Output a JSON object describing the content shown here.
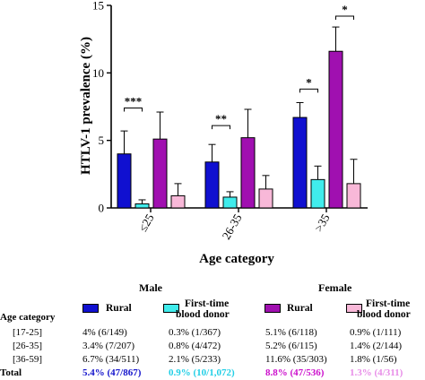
{
  "colors": {
    "male_rural": "#1010d0",
    "male_donor": "#40ecec",
    "female_rural": "#a010b0",
    "female_donor": "#f8b8d8",
    "total_male_rural": "#1515cc",
    "total_male_donor": "#22cfe6",
    "total_female_rural": "#cc10cc",
    "total_female_donor": "#e88ee8"
  },
  "chart_data": {
    "type": "bar",
    "xlabel": "Age category",
    "ylabel": "HTLV-1 prevalence (%)",
    "ylim": [
      0,
      15
    ],
    "yticks": [
      "0",
      "5",
      "10",
      "15"
    ],
    "categories": [
      "≤25",
      "26-35",
      ">35"
    ],
    "series": [
      {
        "name": "Male Rural",
        "values": [
          4.0,
          3.4,
          6.7
        ],
        "err": [
          1.7,
          1.3,
          1.1
        ],
        "color": "#1010d0"
      },
      {
        "name": "Male First-time blood donor",
        "values": [
          0.3,
          0.8,
          2.1
        ],
        "err": [
          0.3,
          0.4,
          1.0
        ],
        "color": "#40ecec"
      },
      {
        "name": "Female Rural",
        "values": [
          5.1,
          5.2,
          11.6
        ],
        "err": [
          2.0,
          2.1,
          1.8
        ],
        "color": "#a010b0"
      },
      {
        "name": "Female First-time blood donor",
        "values": [
          0.9,
          1.4,
          1.8
        ],
        "err": [
          0.9,
          1.0,
          1.8
        ],
        "color": "#f8b8d8"
      }
    ],
    "significance": [
      {
        "category": 0,
        "from": 0,
        "to": 1,
        "label": "***",
        "y": 7.4
      },
      {
        "category": 1,
        "from": 0,
        "to": 1,
        "label": "**",
        "y": 6.1
      },
      {
        "category": 2,
        "from": 0,
        "to": 1,
        "label": "*",
        "y": 8.8
      },
      {
        "category": 2,
        "from": 2,
        "to": 3,
        "label": "*",
        "y": 14.2
      }
    ]
  },
  "table": {
    "male_header": "Male",
    "female_header": "Female",
    "age_category_header": "Age category",
    "legend": {
      "male_rural": "Rural",
      "male_donor_line1": "First-time",
      "male_donor_line2": "blood donor",
      "female_rural": "Rural",
      "female_donor_line1": "First-time",
      "female_donor_line2": "blood donor"
    },
    "rows": [
      {
        "label": "[17-25]",
        "c1": "4% (6/149)",
        "c2": "0.3% (1/367)",
        "c3": "5.1% (6/118)",
        "c4": "0.9% (1/111)"
      },
      {
        "label": "[26-35]",
        "c1": "3.4% (7/207)",
        "c2": "0.8% (4/472)",
        "c3": "5.2% (6/115)",
        "c4": "1.4% (2/144)"
      },
      {
        "label": "[36-59]",
        "c1": "6.7% (34/511)",
        "c2": "2.1% (5/233)",
        "c3": "11.6% (35/303)",
        "c4": "1.8% (1/56)"
      }
    ],
    "total": {
      "label": "Total",
      "c1": "5.4% (47/867)",
      "c2": "0.9% (10/1,072)",
      "c3": "8.8% (47/536)",
      "c4": "1.3% (4/311)"
    }
  }
}
